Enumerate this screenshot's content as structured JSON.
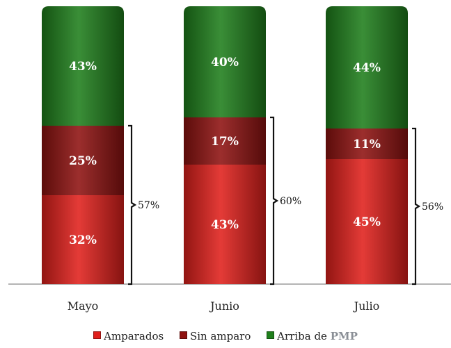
{
  "chart_data": {
    "type": "bar",
    "stacked": true,
    "categories": [
      "Mayo",
      "Junio",
      "Julio"
    ],
    "series": [
      {
        "name": "Amparados",
        "values": [
          32,
          43,
          45
        ],
        "labels": [
          "32%",
          "43%",
          "45%"
        ],
        "color": "#e0201c"
      },
      {
        "name": "Sin amparo",
        "values": [
          25,
          17,
          11
        ],
        "labels": [
          "25%",
          "17%",
          "11%"
        ],
        "color": "#8e1210"
      },
      {
        "name": "Arriba de PMP",
        "values": [
          43,
          40,
          44
        ],
        "labels": [
          "43%",
          "40%",
          "44%"
        ],
        "color": "#1f7f1c"
      }
    ],
    "brackets": {
      "values": [
        57,
        60,
        56
      ],
      "labels": [
        "57%",
        "60%",
        "56%"
      ]
    },
    "ylim": [
      0,
      100
    ],
    "legend_position": "bottom",
    "grid": false,
    "title": "",
    "xlabel": "",
    "ylabel": ""
  },
  "legend": {
    "items": [
      {
        "name": "Amparados",
        "label": "Amparados",
        "color": "#e0201c"
      },
      {
        "name": "Sin amparo",
        "label": "Sin amparo",
        "color": "#8e1210"
      },
      {
        "name": "Arriba de PMP",
        "label_prefix": "Arriba de ",
        "label_emph": "PMP",
        "color": "#1f7f1c"
      }
    ]
  }
}
